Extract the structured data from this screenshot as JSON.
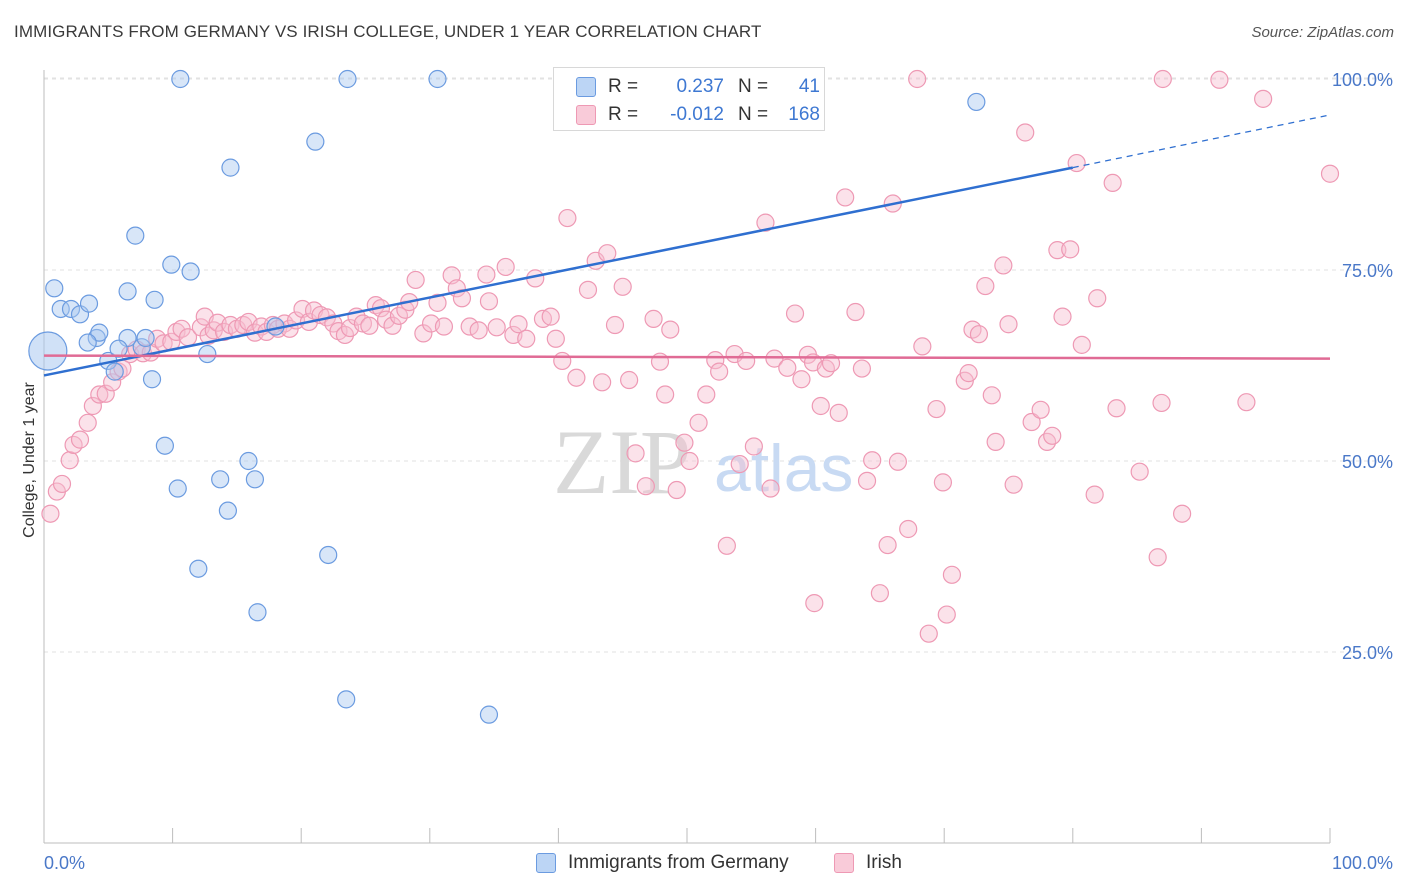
{
  "header": {
    "title": "IMMIGRANTS FROM GERMANY VS IRISH COLLEGE, UNDER 1 YEAR CORRELATION CHART",
    "source": "Source: ZipAtlas.com"
  },
  "watermark": {
    "zip": "ZIP",
    "atlas": "atlas"
  },
  "legend": {
    "r_label": "R =",
    "n_label": "N =",
    "series1": {
      "r": "0.237",
      "n": "41"
    },
    "series2": {
      "r": "-0.012",
      "n": "168"
    }
  },
  "bottom_legend": {
    "series1": "Immigrants from Germany",
    "series2": "Irish"
  },
  "colors": {
    "series1_fill": "#a9c8f0",
    "series1_stroke": "#6b9be0",
    "series1_line": "#2f6fd0",
    "series2_fill": "#f6bfd0",
    "series2_stroke": "#ee99b4",
    "series2_line": "#e06b95",
    "tick_text": "#4a78c8",
    "grid": "#e2e2e2"
  },
  "chart_data": {
    "type": "scatter",
    "title": "IMMIGRANTS FROM GERMANY VS IRISH COLLEGE, UNDER 1 YEAR CORRELATION CHART",
    "xlabel": "",
    "ylabel": "College, Under 1 year",
    "xlim": [
      0,
      100
    ],
    "ylim": [
      0,
      105
    ],
    "x_tick_labels": [
      "0.0%",
      "100.0%"
    ],
    "y_ticks": [
      25,
      50,
      75,
      100
    ],
    "y_tick_labels": [
      "25.0%",
      "50.0%",
      "75.0%",
      "100.0%"
    ],
    "grid": true,
    "legend_placement": "top-center",
    "series": [
      {
        "name": "Immigrants from Germany",
        "r": 0.237,
        "n": 41,
        "trend": {
          "x0": 0,
          "y0": 61.2,
          "x1": 80,
          "y1": 88.4,
          "dashed_to_x": 100,
          "dashed_to_y": 95.3
        },
        "points": [
          [
            0.3,
            64.4,
            "large"
          ],
          [
            0.8,
            72.6
          ],
          [
            1.3,
            69.9
          ],
          [
            2.1,
            69.9
          ],
          [
            2.8,
            69.2
          ],
          [
            3.5,
            70.6
          ],
          [
            4.1,
            66.1
          ],
          [
            4.3,
            66.8
          ],
          [
            5.0,
            63.1
          ],
          [
            5.5,
            61.7
          ],
          [
            6.5,
            72.2
          ],
          [
            6.5,
            66.1
          ],
          [
            7.1,
            79.5
          ],
          [
            7.6,
            64.9
          ],
          [
            7.9,
            66.1
          ],
          [
            8.4,
            60.7
          ],
          [
            8.6,
            71.1
          ],
          [
            9.4,
            52.0
          ],
          [
            9.9,
            75.7
          ],
          [
            10.4,
            46.4
          ],
          [
            10.6,
            100.0
          ],
          [
            11.4,
            74.8
          ],
          [
            12.0,
            35.9
          ],
          [
            12.7,
            64.0
          ],
          [
            13.7,
            47.6
          ],
          [
            14.3,
            43.5
          ],
          [
            14.5,
            88.4
          ],
          [
            15.9,
            50.0
          ],
          [
            16.4,
            47.6
          ],
          [
            16.6,
            30.2
          ],
          [
            18.0,
            67.6
          ],
          [
            21.1,
            91.8
          ],
          [
            22.1,
            37.7
          ],
          [
            23.5,
            18.8
          ],
          [
            23.6,
            100.0
          ],
          [
            30.6,
            100.0
          ],
          [
            34.6,
            16.8
          ],
          [
            47.0,
            100.0
          ],
          [
            72.5,
            97.0
          ],
          [
            5.8,
            64.7
          ],
          [
            3.4,
            65.5
          ]
        ]
      },
      {
        "name": "Irish",
        "r": -0.012,
        "n": 168,
        "trend": {
          "x0": 0,
          "y0": 63.8,
          "x1": 100,
          "y1": 63.4
        },
        "points": [
          [
            0.5,
            43.1
          ],
          [
            1.0,
            46.0
          ],
          [
            1.4,
            47.0
          ],
          [
            2.0,
            50.1
          ],
          [
            2.3,
            52.1
          ],
          [
            2.8,
            52.8
          ],
          [
            3.4,
            55.0
          ],
          [
            3.8,
            57.2
          ],
          [
            4.3,
            58.7
          ],
          [
            4.8,
            58.8
          ],
          [
            5.3,
            60.3
          ],
          [
            5.8,
            61.7
          ],
          [
            6.1,
            62.1
          ],
          [
            6.7,
            64.0
          ],
          [
            7.2,
            64.6
          ],
          [
            7.7,
            64.1
          ],
          [
            8.3,
            64.2
          ],
          [
            8.8,
            66.0
          ],
          [
            9.3,
            65.4
          ],
          [
            9.9,
            65.6
          ],
          [
            10.3,
            66.9
          ],
          [
            10.7,
            67.3
          ],
          [
            11.2,
            66.2
          ],
          [
            12.2,
            67.5
          ],
          [
            12.5,
            68.9
          ],
          [
            12.8,
            66.4
          ],
          [
            13.2,
            67.1
          ],
          [
            13.5,
            68.1
          ],
          [
            14.0,
            66.9
          ],
          [
            14.5,
            67.8
          ],
          [
            15.0,
            67.3
          ],
          [
            15.5,
            67.8
          ],
          [
            15.9,
            68.2
          ],
          [
            16.4,
            66.8
          ],
          [
            16.9,
            67.6
          ],
          [
            17.3,
            66.9
          ],
          [
            17.8,
            67.8
          ],
          [
            18.2,
            67.3
          ],
          [
            18.7,
            68.0
          ],
          [
            19.1,
            67.3
          ],
          [
            19.6,
            68.4
          ],
          [
            20.1,
            69.9
          ],
          [
            20.6,
            68.2
          ],
          [
            21.0,
            69.7
          ],
          [
            21.5,
            69.1
          ],
          [
            22.0,
            68.8
          ],
          [
            22.5,
            68.0
          ],
          [
            22.9,
            67.0
          ],
          [
            23.4,
            66.5
          ],
          [
            23.8,
            67.4
          ],
          [
            24.3,
            68.9
          ],
          [
            24.8,
            68.0
          ],
          [
            25.3,
            67.7
          ],
          [
            25.8,
            70.4
          ],
          [
            26.2,
            70.0
          ],
          [
            26.6,
            68.5
          ],
          [
            27.1,
            67.7
          ],
          [
            27.6,
            69.0
          ],
          [
            28.1,
            69.8
          ],
          [
            28.4,
            70.8
          ],
          [
            28.9,
            73.7
          ],
          [
            29.5,
            66.7
          ],
          [
            30.1,
            68.0
          ],
          [
            30.6,
            70.7
          ],
          [
            31.1,
            67.6
          ],
          [
            31.7,
            74.3
          ],
          [
            32.1,
            72.6
          ],
          [
            32.5,
            71.3
          ],
          [
            33.1,
            67.6
          ],
          [
            33.8,
            67.1
          ],
          [
            34.4,
            74.4
          ],
          [
            34.6,
            70.9
          ],
          [
            35.2,
            67.5
          ],
          [
            35.9,
            75.4
          ],
          [
            36.5,
            66.5
          ],
          [
            36.9,
            67.9
          ],
          [
            37.5,
            66.0
          ],
          [
            38.2,
            73.9
          ],
          [
            38.8,
            68.6
          ],
          [
            39.4,
            68.9
          ],
          [
            39.8,
            66.0
          ],
          [
            40.3,
            63.1
          ],
          [
            40.7,
            81.8
          ],
          [
            41.4,
            60.9
          ],
          [
            42.3,
            72.4
          ],
          [
            42.9,
            76.2
          ],
          [
            43.4,
            60.3
          ],
          [
            43.8,
            77.2
          ],
          [
            44.4,
            67.8
          ],
          [
            45.0,
            72.8
          ],
          [
            45.5,
            60.6
          ],
          [
            46.0,
            51.0
          ],
          [
            46.8,
            46.7
          ],
          [
            47.4,
            68.6
          ],
          [
            47.9,
            63.0
          ],
          [
            48.3,
            58.7
          ],
          [
            48.7,
            67.2
          ],
          [
            49.2,
            46.2
          ],
          [
            49.8,
            52.4
          ],
          [
            50.2,
            50.0
          ],
          [
            50.9,
            55.0
          ],
          [
            51.5,
            58.7
          ],
          [
            52.2,
            63.2
          ],
          [
            52.5,
            61.7
          ],
          [
            53.1,
            38.9
          ],
          [
            53.7,
            64.0
          ],
          [
            54.1,
            49.6
          ],
          [
            54.6,
            63.1
          ],
          [
            55.2,
            51.9
          ],
          [
            56.1,
            81.2
          ],
          [
            56.5,
            46.4
          ],
          [
            56.8,
            63.4
          ],
          [
            57.8,
            62.2
          ],
          [
            58.4,
            69.3
          ],
          [
            58.9,
            60.7
          ],
          [
            59.4,
            63.9
          ],
          [
            59.8,
            62.9
          ],
          [
            59.9,
            31.4
          ],
          [
            60.4,
            57.2
          ],
          [
            60.8,
            62.1
          ],
          [
            61.2,
            62.8
          ],
          [
            61.8,
            56.3
          ],
          [
            62.3,
            84.5
          ],
          [
            63.1,
            69.5
          ],
          [
            63.6,
            62.1
          ],
          [
            64.0,
            47.4
          ],
          [
            64.4,
            50.1
          ],
          [
            65.0,
            32.7
          ],
          [
            65.6,
            39.0
          ],
          [
            66.0,
            83.7
          ],
          [
            66.4,
            49.9
          ],
          [
            67.2,
            41.1
          ],
          [
            67.9,
            100.0
          ],
          [
            68.3,
            65.0
          ],
          [
            68.8,
            27.4
          ],
          [
            69.4,
            56.8
          ],
          [
            69.9,
            47.2
          ],
          [
            70.2,
            29.9
          ],
          [
            70.6,
            35.1
          ],
          [
            71.6,
            60.5
          ],
          [
            71.9,
            61.5
          ],
          [
            72.2,
            67.2
          ],
          [
            72.7,
            66.6
          ],
          [
            73.2,
            72.9
          ],
          [
            73.7,
            58.6
          ],
          [
            74.0,
            52.5
          ],
          [
            74.6,
            75.6
          ],
          [
            75.0,
            67.9
          ],
          [
            75.4,
            46.9
          ],
          [
            76.3,
            93.0
          ],
          [
            76.8,
            55.1
          ],
          [
            77.5,
            56.7
          ],
          [
            78.0,
            52.5
          ],
          [
            78.4,
            53.3
          ],
          [
            78.8,
            77.6
          ],
          [
            79.2,
            68.9
          ],
          [
            79.8,
            77.7
          ],
          [
            80.3,
            89.0
          ],
          [
            80.7,
            65.2
          ],
          [
            81.7,
            45.6
          ],
          [
            81.9,
            71.3
          ],
          [
            83.1,
            86.4
          ],
          [
            83.4,
            56.9
          ],
          [
            85.2,
            48.6
          ],
          [
            86.6,
            37.4
          ],
          [
            86.9,
            57.6
          ],
          [
            87.0,
            100.0
          ],
          [
            88.5,
            43.1
          ],
          [
            91.4,
            99.9
          ],
          [
            93.5,
            57.7
          ],
          [
            94.8,
            97.4
          ],
          [
            100.0,
            87.6
          ]
        ]
      }
    ]
  }
}
